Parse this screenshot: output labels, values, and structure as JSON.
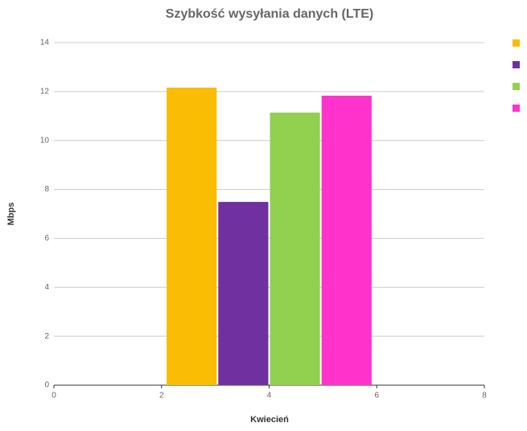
{
  "chart_data": {
    "type": "bar",
    "title": "Szybkość wysyłania danych (LTE)",
    "x_label": "Kwiecień",
    "y_label": "Mbps",
    "x": [
      4
    ],
    "series": [
      {
        "color": "#fbbc04",
        "values": [
          12.16
        ]
      },
      {
        "color": "#7030a0",
        "values": [
          7.49
        ]
      },
      {
        "color": "#92d050",
        "values": [
          11.14
        ]
      },
      {
        "color": "#ff33cc",
        "values": [
          11.83
        ]
      }
    ],
    "xlim": [
      0,
      8
    ],
    "xticks": [
      0,
      2,
      4,
      6,
      8
    ],
    "ylim": [
      0,
      14
    ],
    "yticks": [
      0,
      2,
      4,
      6,
      8,
      10,
      12,
      14
    ],
    "grid": true
  }
}
